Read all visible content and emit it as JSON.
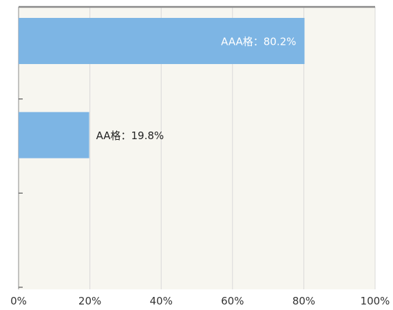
{
  "chart_data": {
    "type": "bar",
    "orientation": "horizontal",
    "xlim": [
      0,
      100
    ],
    "x_ticks": [
      "0%",
      "20%",
      "40%",
      "60%",
      "80%",
      "100%"
    ],
    "grid": true,
    "categories": [
      "AAA格",
      "AA格",
      ""
    ],
    "series": [
      {
        "values": [
          80.2,
          19.8,
          0
        ],
        "labels": [
          "AAA格：80.2%",
          "AA格：19.8%",
          ""
        ]
      }
    ],
    "colors": {
      "bar": "#7db5e4",
      "plot_background": "#f7f6f0",
      "grid": "#d8d8d8",
      "axis": "#8a8a8a",
      "label_inside": "#ffffff",
      "label_outside": "#222222",
      "tick_text": "#333333"
    }
  }
}
